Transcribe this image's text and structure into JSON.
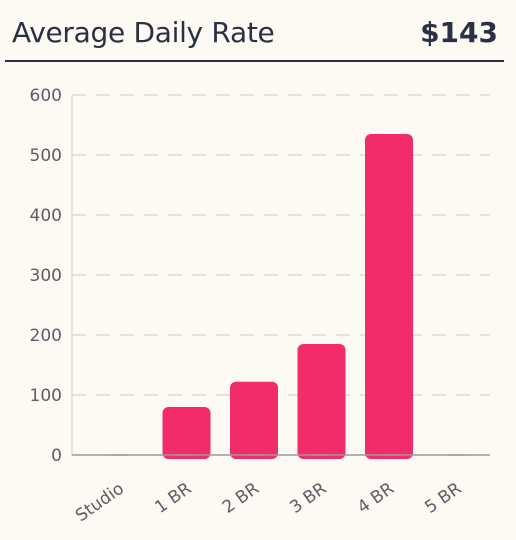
{
  "header": {
    "title": "Average Daily Rate",
    "value": "$143"
  },
  "colors": {
    "bar": "#f22b6b",
    "text": "#2c3044",
    "grid": "#dedad3",
    "background": "#fdf9f3"
  },
  "chart_data": {
    "type": "bar",
    "categories": [
      "Studio",
      "1 BR",
      "2 BR",
      "3 BR",
      "4 BR",
      "5 BR"
    ],
    "values": [
      0,
      80,
      122,
      185,
      535,
      0
    ],
    "ylim": [
      0,
      600
    ],
    "yticks": [
      "0",
      "100",
      "200",
      "300",
      "400",
      "500",
      "600"
    ],
    "grid": true,
    "legend": "none"
  }
}
